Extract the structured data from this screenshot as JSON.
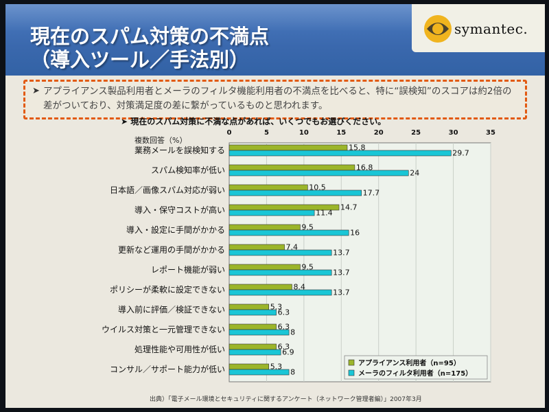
{
  "slide": {
    "title_line1": "現在のスパム対策の不満点",
    "title_line2": "（導入ツール／手法別）",
    "logo_text": "symantec.",
    "notice_text": "アプライアンス製品利用者とメーラのフィルタ機能利用者の不満点を比べると、特に“誤検知”のスコアは約2倍の差がついており、対策満足度の差に繋がっているものと思われます。",
    "source": "出典）「電子メール環境とセキュリティに関するアンケート（ネットワーク管理者編）」2007年3月"
  },
  "chart_data": {
    "type": "bar",
    "orientation": "horizontal",
    "title": "現在のスパム対策に不満な点があれば、いくつでもお選びください。",
    "ylabel": "複数回答（%）",
    "xlim": [
      0,
      35
    ],
    "xticks": [
      0,
      5,
      10,
      15,
      20,
      25,
      30,
      35
    ],
    "grid": true,
    "legend_position": "bottom-right",
    "categories": [
      "業務メールを誤検知する",
      "スパム検知率が低い",
      "日本語／画像スパム対応が弱い",
      "導入・保守コストが高い",
      "導入・設定に手間がかかる",
      "更新など運用の手間がかかる",
      "レポート機能が弱い",
      "ポリシーが柔軟に設定できない",
      "導入前に評価／検証できない",
      "ウイルス対策と一元管理できない",
      "処理性能や可用性が低い",
      "コンサル／サポート能力が低い"
    ],
    "series": [
      {
        "name": "アプライアンス利用者（n=95）",
        "color": "#9bb52a",
        "values": [
          15.8,
          16.8,
          10.5,
          14.7,
          9.5,
          7.4,
          9.5,
          8.4,
          5.3,
          6.3,
          6.3,
          5.3
        ]
      },
      {
        "name": "メーラのフィルタ利用者（n=175）",
        "color": "#19c6d6",
        "values": [
          29.7,
          24,
          17.7,
          11.4,
          16,
          13.7,
          13.7,
          13.7,
          6.3,
          8,
          6.9,
          8
        ]
      }
    ]
  }
}
